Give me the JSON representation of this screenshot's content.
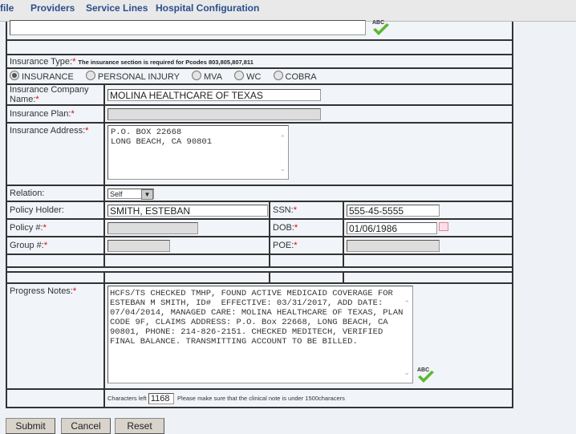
{
  "nav": {
    "items": [
      "file",
      "Providers",
      "Service Lines",
      "Hospital Configuration"
    ]
  },
  "insurance_type": {
    "label": "Insurance Type:",
    "required": "*",
    "note": "The insurance section is required for Pcodes 803,805,807,811",
    "options": [
      "INSURANCE",
      "PERSONAL INJURY",
      "MVA",
      "WC",
      "COBRA"
    ],
    "selected": "INSURANCE"
  },
  "fields": {
    "company_label": "Insurance Company Name:",
    "company_value": "MOLINA HEALTHCARE OF TEXAS",
    "plan_label": "Insurance Plan:",
    "plan_value": "",
    "address_label": "Insurance Address:",
    "address_value": "P.O. BOX 22668\nLONG BEACH, CA 90801",
    "relation_label": "Relation:",
    "relation_value": "Self",
    "holder_label": "Policy Holder:",
    "holder_value": "SMITH, ESTEBAN",
    "ssn_label": "SSN:",
    "ssn_value": "555-45-5555",
    "policy_label": "Policy #:",
    "policy_value": "",
    "dob_label": "DOB:",
    "dob_value": "01/06/1986",
    "group_label": "Group #:",
    "group_value": "",
    "poe_label": "POE:",
    "poe_value": "",
    "req": "*"
  },
  "progress": {
    "label": "Progress Notes:",
    "text": "HCFS/TS CHECKED TMHP, FOUND ACTIVE MEDICAID COVERAGE FOR\nESTEBAN M SMITH, ID#  EFFECTIVE: 03/31/2017, ADD DATE:\n07/04/2014, MANAGED CARE: MOLINA HEALTHCARE OF TEXAS, PLAN\nCODE 9F, CLAIMS ADDRESS: P.O. Box 22668, LONG BEACH, CA\n90801, PHONE: 214-826-2151. CHECKED MEDITECH, VERIFIED\nFINAL BALANCE. TRANSMITTING ACCOUNT TO BE BILLED.",
    "chars_left_label": "Characters left",
    "chars_left": "1168",
    "hint": "Please make sure that the clinical note is under 1500characers"
  },
  "spellcheck": "ABC",
  "buttons": {
    "submit": "Submit",
    "cancel": "Cancel",
    "reset": "Reset"
  },
  "colors": {
    "nav_text": "#2b4e8c",
    "required": "#dd0000",
    "spell_check": "#5cb82e"
  }
}
